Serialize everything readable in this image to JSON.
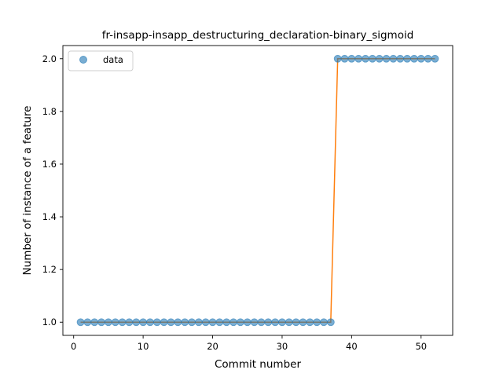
{
  "chart_data": {
    "type": "line",
    "title": "fr-insapp-insapp_destructuring_declaration-binary_sigmoid",
    "xlabel": "Commit number",
    "ylabel": "Number of instance of a feature",
    "xlim": [
      -1.55,
      54.55
    ],
    "ylim": [
      0.95,
      2.05
    ],
    "x_ticks": [
      0,
      10,
      20,
      30,
      40,
      50
    ],
    "y_ticks": [
      1.0,
      1.2,
      1.4,
      1.6,
      1.8,
      2.0
    ],
    "x_tick_labels": [
      "0",
      "10",
      "20",
      "30",
      "40",
      "50"
    ],
    "y_tick_labels": [
      "1.0",
      "1.2",
      "1.4",
      "1.6",
      "1.8",
      "2.0"
    ],
    "grid": false,
    "legend": {
      "placement": "top-left",
      "entries": [
        "data"
      ]
    },
    "colors": {
      "points": "#1f77b4",
      "fit_line": "#ff7f0e"
    },
    "series": [
      {
        "name": "data",
        "kind": "scatter",
        "x": [
          1,
          2,
          3,
          4,
          5,
          6,
          7,
          8,
          9,
          10,
          11,
          12,
          13,
          14,
          15,
          16,
          17,
          18,
          19,
          20,
          21,
          22,
          23,
          24,
          25,
          26,
          27,
          28,
          29,
          30,
          31,
          32,
          33,
          34,
          35,
          36,
          37,
          38,
          39,
          40,
          41,
          42,
          43,
          44,
          45,
          46,
          47,
          48,
          49,
          50,
          51,
          52
        ],
        "y": [
          1,
          1,
          1,
          1,
          1,
          1,
          1,
          1,
          1,
          1,
          1,
          1,
          1,
          1,
          1,
          1,
          1,
          1,
          1,
          1,
          1,
          1,
          1,
          1,
          1,
          1,
          1,
          1,
          1,
          1,
          1,
          1,
          1,
          1,
          1,
          1,
          1,
          2,
          2,
          2,
          2,
          2,
          2,
          2,
          2,
          2,
          2,
          2,
          2,
          2,
          2,
          2
        ]
      },
      {
        "kind": "line",
        "x": [
          1,
          2,
          3,
          4,
          5,
          6,
          7,
          8,
          9,
          10,
          11,
          12,
          13,
          14,
          15,
          16,
          17,
          18,
          19,
          20,
          21,
          22,
          23,
          24,
          25,
          26,
          27,
          28,
          29,
          30,
          31,
          32,
          33,
          34,
          35,
          36,
          37,
          38,
          39,
          40,
          41,
          42,
          43,
          44,
          45,
          46,
          47,
          48,
          49,
          50,
          51,
          52
        ],
        "y": [
          1,
          1,
          1,
          1,
          1,
          1,
          1,
          1,
          1,
          1,
          1,
          1,
          1,
          1,
          1,
          1,
          1,
          1,
          1,
          1,
          1,
          1,
          1,
          1,
          1,
          1,
          1,
          1,
          1,
          1,
          1,
          1,
          1,
          1,
          1,
          1,
          1,
          2,
          2,
          2,
          2,
          2,
          2,
          2,
          2,
          2,
          2,
          2,
          2,
          2,
          2,
          2
        ]
      }
    ]
  }
}
